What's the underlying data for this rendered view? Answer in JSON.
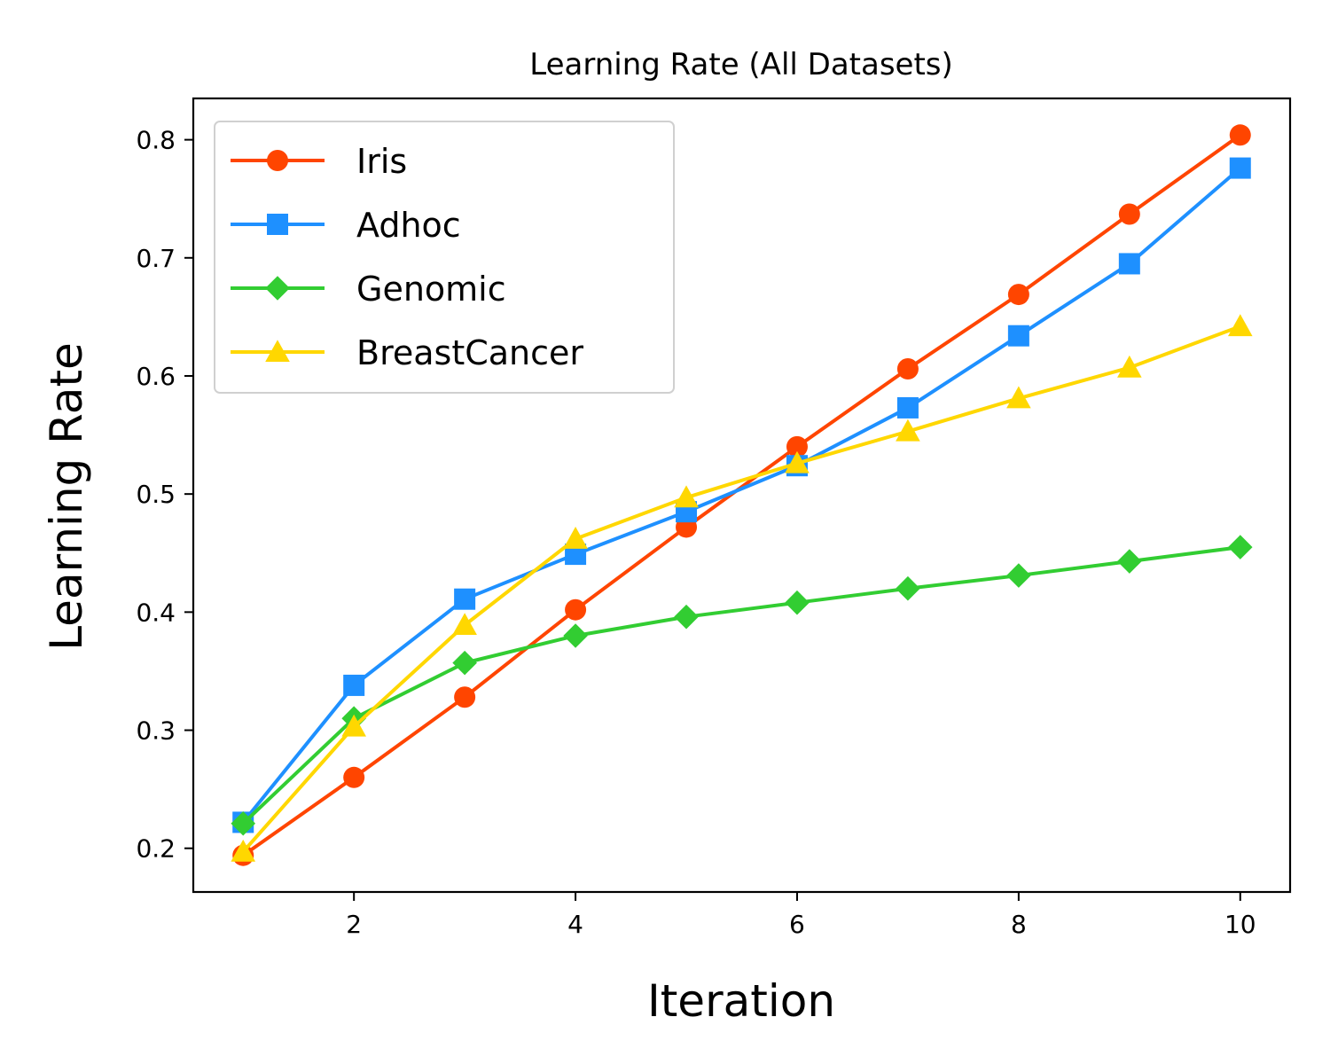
{
  "chart_data": {
    "type": "line",
    "title": "Learning Rate (All Datasets)",
    "xlabel": "Iteration",
    "ylabel": "Learning Rate",
    "x": [
      1,
      2,
      3,
      4,
      5,
      6,
      7,
      8,
      9,
      10
    ],
    "xlim": [
      0.55,
      10.45
    ],
    "ylim": [
      0.163,
      0.835
    ],
    "xticks": [
      2,
      4,
      6,
      8,
      10
    ],
    "yticks": [
      0.2,
      0.3,
      0.4,
      0.5,
      0.6,
      0.7,
      0.8
    ],
    "xtick_labels": [
      "2",
      "4",
      "6",
      "8",
      "10"
    ],
    "ytick_labels": [
      "0.2",
      "0.3",
      "0.4",
      "0.5",
      "0.6",
      "0.7",
      "0.8"
    ],
    "grid": false,
    "legend_position": "top-left",
    "series": [
      {
        "name": "Iris",
        "color": "#FF4500",
        "marker": "circle",
        "values": [
          0.194,
          0.26,
          0.328,
          0.402,
          0.472,
          0.54,
          0.606,
          0.669,
          0.737,
          0.804
        ]
      },
      {
        "name": "Adhoc",
        "color": "#1E90FF",
        "marker": "square",
        "values": [
          0.222,
          0.338,
          0.411,
          0.449,
          0.485,
          0.524,
          0.573,
          0.634,
          0.695,
          0.776
        ]
      },
      {
        "name": "Genomic",
        "color": "#32CD32",
        "marker": "diamond",
        "values": [
          0.221,
          0.31,
          0.357,
          0.38,
          0.396,
          0.408,
          0.42,
          0.431,
          0.443,
          0.455
        ]
      },
      {
        "name": "BreastCancer",
        "color": "#FFD700",
        "marker": "triangle",
        "values": [
          0.197,
          0.303,
          0.389,
          0.462,
          0.497,
          0.526,
          0.553,
          0.581,
          0.607,
          0.642
        ]
      }
    ]
  }
}
